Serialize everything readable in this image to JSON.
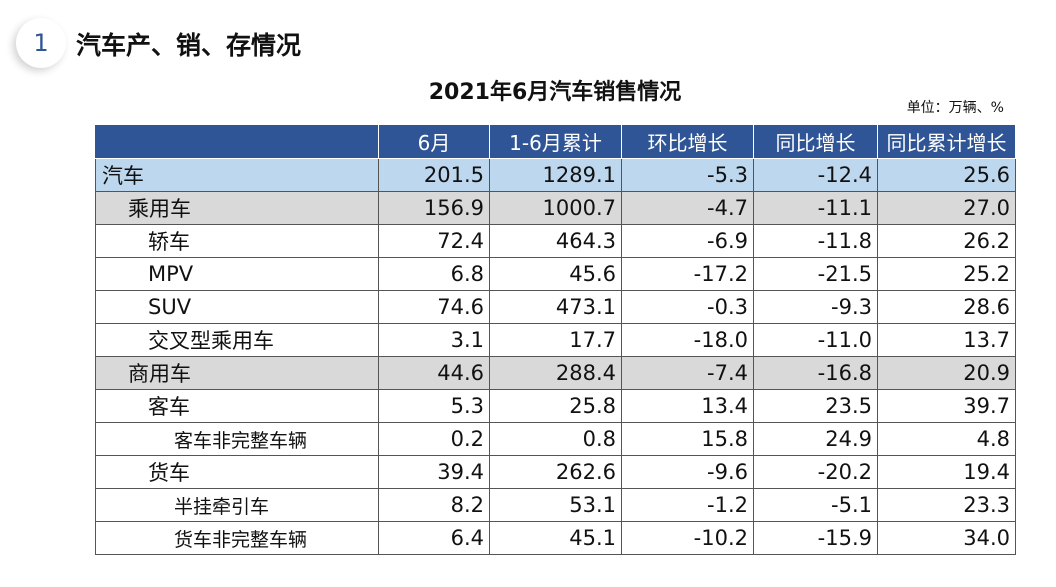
{
  "section": {
    "number": "1",
    "title": "汽车产、销、存情况"
  },
  "table_title": "2021年6月汽车销售情况",
  "unit_note": "单位：万辆、%",
  "columns": [
    "",
    "6月",
    "1-6月累计",
    "环比增长",
    "同比增长",
    "同比累计增长"
  ],
  "rows": [
    {
      "name": "汽车",
      "level": 0,
      "values": [
        "201.5",
        "1289.1",
        "-5.3",
        "-12.4",
        "25.6"
      ]
    },
    {
      "name": "乘用车",
      "level": 1,
      "values": [
        "156.9",
        "1000.7",
        "-4.7",
        "-11.1",
        "27.0"
      ]
    },
    {
      "name": "轿车",
      "level": 2,
      "values": [
        "72.4",
        "464.3",
        "-6.9",
        "-11.8",
        "26.2"
      ]
    },
    {
      "name": "MPV",
      "level": 2,
      "values": [
        "6.8",
        "45.6",
        "-17.2",
        "-21.5",
        "25.2"
      ]
    },
    {
      "name": "SUV",
      "level": 2,
      "values": [
        "74.6",
        "473.1",
        "-0.3",
        "-9.3",
        "28.6"
      ]
    },
    {
      "name": "交叉型乘用车",
      "level": 2,
      "values": [
        "3.1",
        "17.7",
        "-18.0",
        "-11.0",
        "13.7"
      ]
    },
    {
      "name": "商用车",
      "level": 1,
      "values": [
        "44.6",
        "288.4",
        "-7.4",
        "-16.8",
        "20.9"
      ]
    },
    {
      "name": "客车",
      "level": 2,
      "values": [
        "5.3",
        "25.8",
        "13.4",
        "23.5",
        "39.7"
      ]
    },
    {
      "name": "客车非完整车辆",
      "level": 3,
      "values": [
        "0.2",
        "0.8",
        "15.8",
        "24.9",
        "4.8"
      ]
    },
    {
      "name": "货车",
      "level": 2,
      "values": [
        "39.4",
        "262.6",
        "-9.6",
        "-20.2",
        "19.4"
      ]
    },
    {
      "name": "半挂牵引车",
      "level": 3,
      "values": [
        "8.2",
        "53.1",
        "-1.2",
        "-5.1",
        "23.3"
      ]
    },
    {
      "name": "货车非完整车辆",
      "level": 3,
      "values": [
        "6.4",
        "45.1",
        "-10.2",
        "-15.9",
        "34.0"
      ]
    }
  ],
  "colors": {
    "header_bg": "#2f5597",
    "total_row_bg": "#bdd7ee",
    "category_row_bg": "#d9d9d9"
  }
}
